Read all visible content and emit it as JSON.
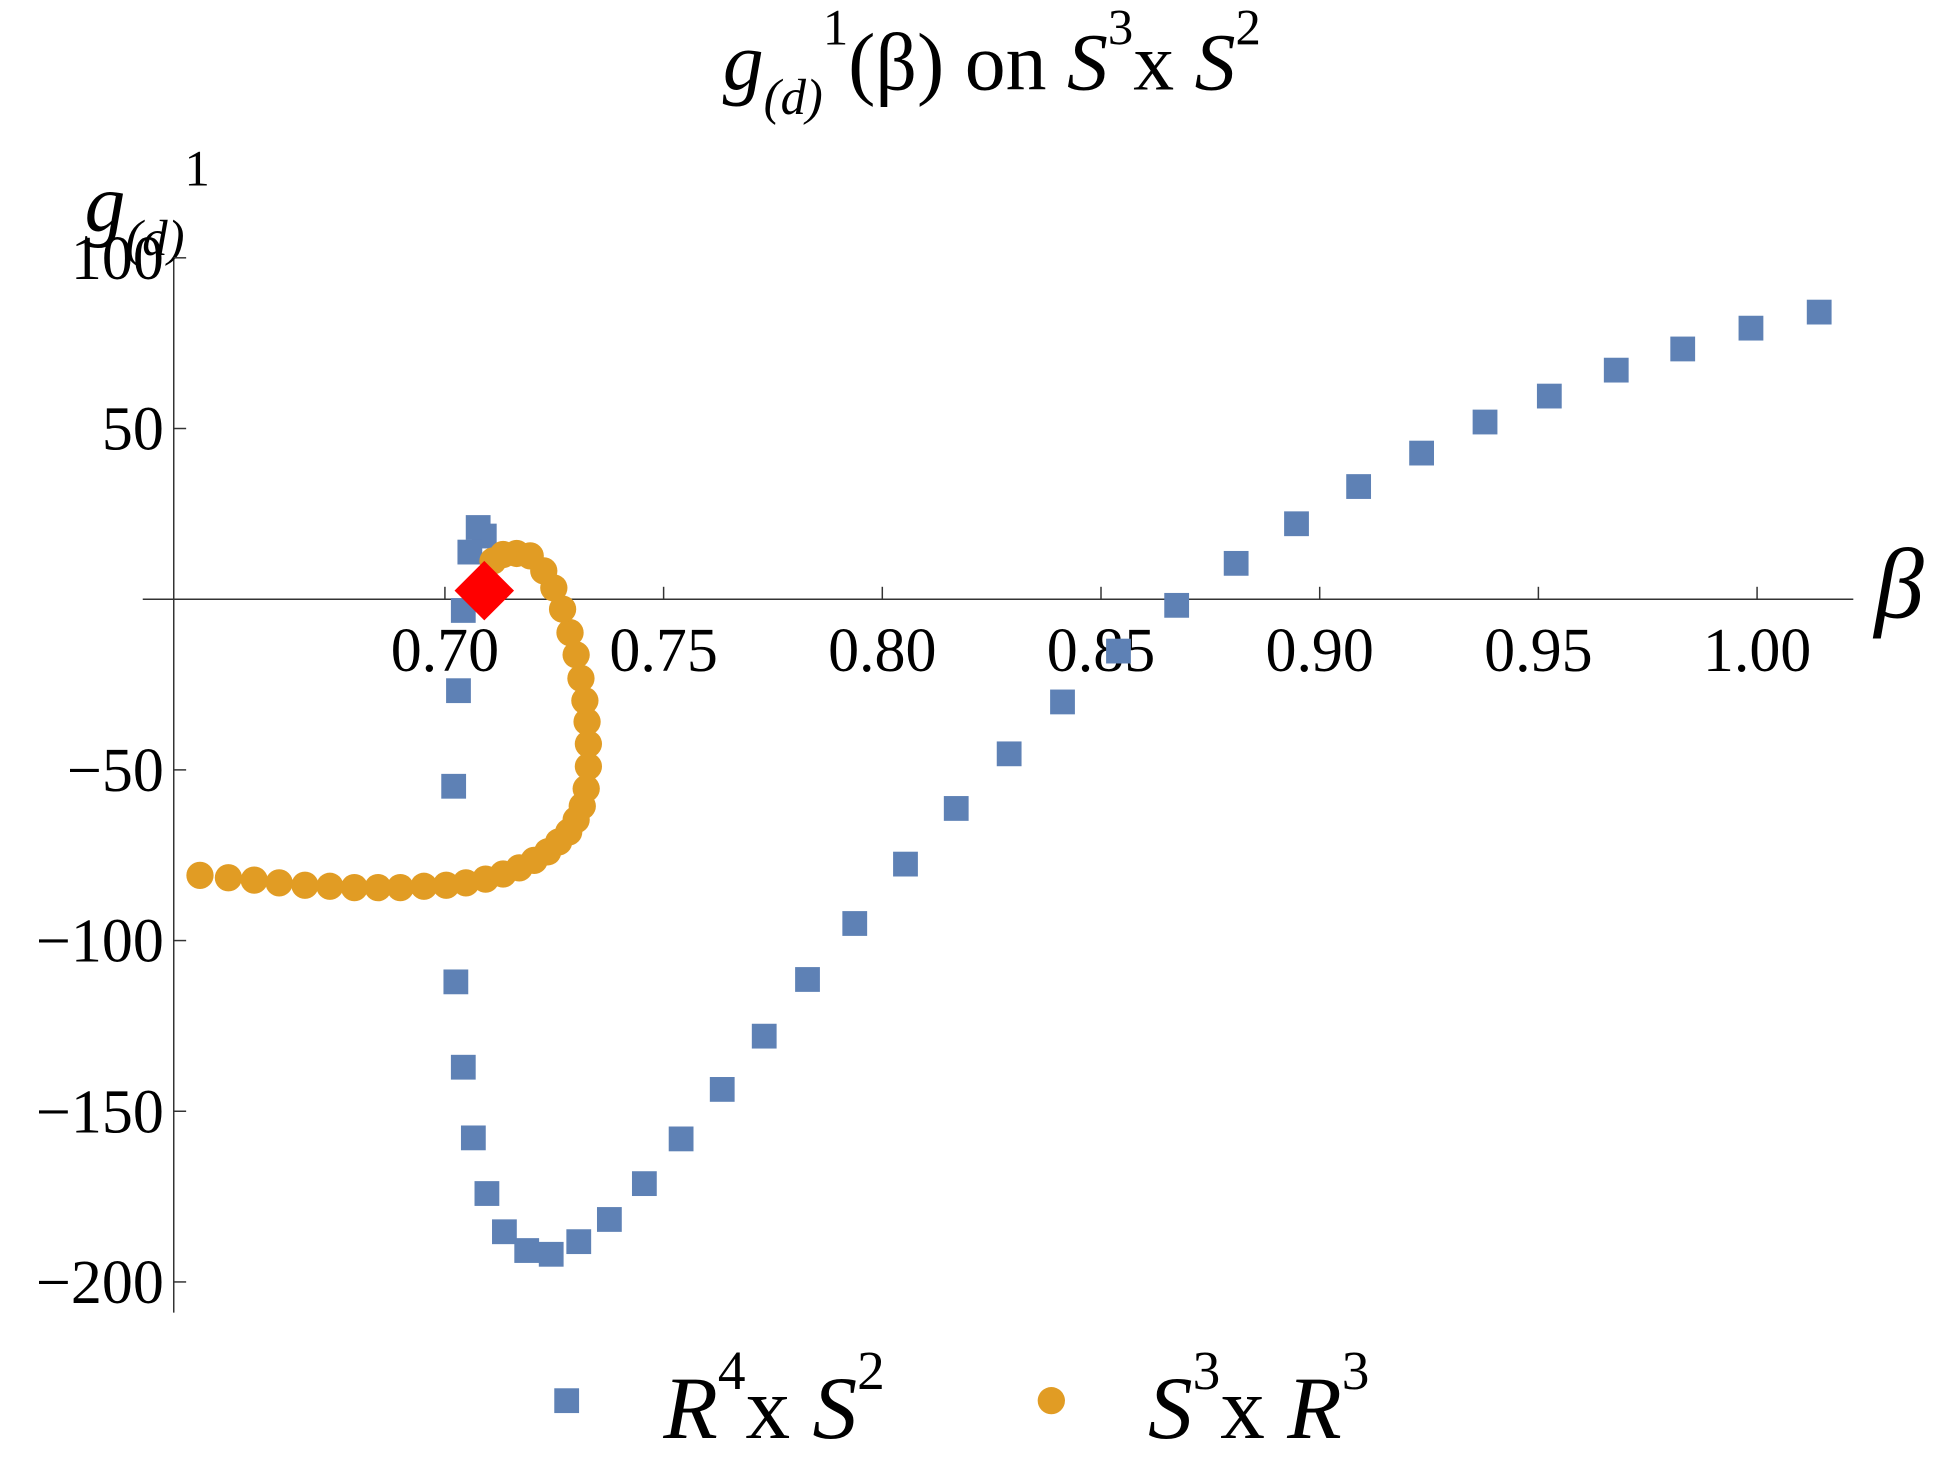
{
  "chart_data": {
    "type": "scatter",
    "title": [
      {
        "text": "g",
        "italic": true
      },
      {
        "text": "(d)",
        "italic": true,
        "shift": "sub"
      },
      {
        "text": "1",
        "shift": "sup"
      },
      {
        "text": "(β) on "
      },
      {
        "text": "S",
        "italic": true
      },
      {
        "text": "3",
        "shift": "sup"
      },
      {
        "text": "x "
      },
      {
        "text": "S",
        "italic": true
      },
      {
        "text": "2",
        "shift": "sup"
      }
    ],
    "y_label": [
      {
        "text": "g",
        "italic": true
      },
      {
        "text": "(d)",
        "italic": true,
        "shift": "sub"
      },
      {
        "text": "1",
        "shift": "sup"
      }
    ],
    "x_label": [
      {
        "text": "β",
        "italic": true
      }
    ],
    "xlim": [
      0.638,
      1.022
    ],
    "ylim": [
      -209,
      100
    ],
    "xticks": [
      {
        "value": 0.7,
        "label": "0.70"
      },
      {
        "value": 0.75,
        "label": "0.75"
      },
      {
        "value": 0.8,
        "label": "0.80"
      },
      {
        "value": 0.85,
        "label": "0.85"
      },
      {
        "value": 0.9,
        "label": "0.90"
      },
      {
        "value": 0.95,
        "label": "0.95"
      },
      {
        "value": 1.0,
        "label": "1.00"
      }
    ],
    "yticks": [
      {
        "value": -200,
        "label": "−200"
      },
      {
        "value": -150,
        "label": "−150"
      },
      {
        "value": -100,
        "label": "−100"
      },
      {
        "value": -50,
        "label": "−50"
      },
      50,
      100
    ],
    "series": [
      {
        "name": [
          {
            "text": "R",
            "italic": true
          },
          {
            "text": "4",
            "shift": "sup"
          },
          {
            "text": "x "
          },
          {
            "text": "S",
            "italic": true
          },
          {
            "text": "2",
            "shift": "sup"
          }
        ],
        "color": "#5e81b5",
        "marker": "square",
        "x": [
          0.709,
          0.7076,
          0.7057,
          0.7042,
          0.7031,
          0.702,
          0.7025,
          0.7042,
          0.7065,
          0.7096,
          0.7136,
          0.7187,
          0.7243,
          0.7306,
          0.7376,
          0.7456,
          0.754,
          0.7634,
          0.773,
          0.7829,
          0.7937,
          0.8053,
          0.8169,
          0.829,
          0.8412,
          0.854,
          0.8673,
          0.8809,
          0.8947,
          0.9089,
          0.9233,
          0.9378,
          0.9525,
          0.9678,
          0.983,
          0.9986,
          1.0142
        ],
        "values": [
          18.5,
          21.0,
          13.8,
          -3.3,
          -26.8,
          -54.8,
          -112.1,
          -137.1,
          -157.8,
          -174.1,
          -185.3,
          -190.8,
          -191.9,
          -188.2,
          -181.7,
          -171.2,
          -158.1,
          -143.6,
          -128.0,
          -111.4,
          -95.0,
          -77.6,
          -61.3,
          -45.3,
          -30.1,
          -15.2,
          -1.8,
          10.5,
          22.1,
          33.0,
          42.8,
          51.9,
          59.5,
          67.1,
          73.3,
          79.4,
          84.1
        ]
      },
      {
        "name": [
          {
            "text": "S",
            "italic": true
          },
          {
            "text": "3",
            "shift": "sup"
          },
          {
            "text": "x "
          },
          {
            "text": "R",
            "italic": true
          },
          {
            "text": "3",
            "shift": "sup"
          }
        ],
        "color": "#e19c24",
        "marker": "circle",
        "x": [
          0.644,
          0.6505,
          0.6564,
          0.6621,
          0.668,
          0.6737,
          0.6793,
          0.6847,
          0.6898,
          0.6952,
          0.7003,
          0.7048,
          0.7093,
          0.7133,
          0.717,
          0.7204,
          0.7235,
          0.726,
          0.7283,
          0.73,
          0.7314,
          0.7323,
          0.7328,
          0.7328,
          0.7325,
          0.732,
          0.7311,
          0.73,
          0.7286,
          0.7269,
          0.7249,
          0.7226,
          0.7195,
          0.7164,
          0.7133,
          0.711
        ],
        "values": [
          -80.9,
          -81.6,
          -82.3,
          -83.1,
          -83.8,
          -84.1,
          -84.5,
          -84.5,
          -84.5,
          -84.1,
          -83.8,
          -83.1,
          -82.0,
          -80.5,
          -78.7,
          -76.5,
          -74.0,
          -71.1,
          -68.2,
          -64.6,
          -60.6,
          -55.5,
          -49.0,
          -42.4,
          -35.9,
          -29.7,
          -23.2,
          -16.3,
          -9.8,
          -2.9,
          3.3,
          8.3,
          12.7,
          13.4,
          13.1,
          11.2
        ]
      }
    ],
    "highlight": {
      "x": 0.709,
      "y": 2.5,
      "color": "#ff0000",
      "marker": "diamond"
    }
  }
}
